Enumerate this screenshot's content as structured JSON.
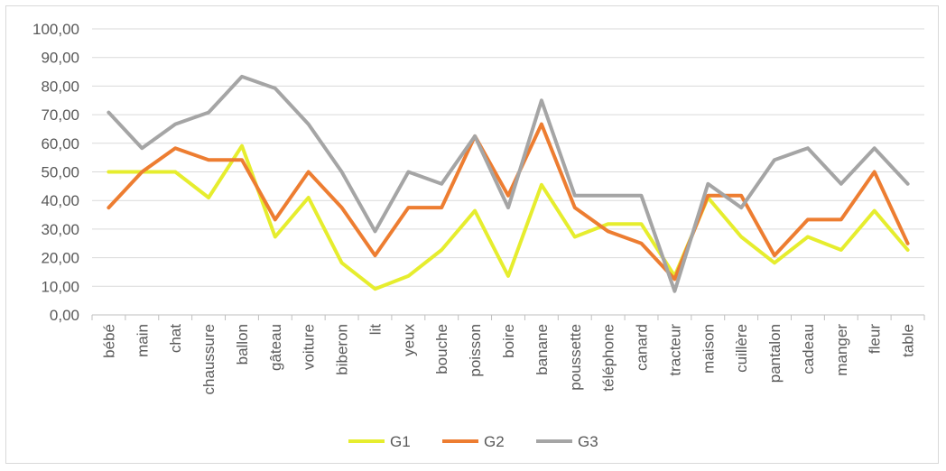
{
  "chart_data": {
    "type": "line",
    "categories": [
      "bébé",
      "main",
      "chat",
      "chaussure",
      "ballon",
      "gâteau",
      "voiture",
      "biberon",
      "lit",
      "yeux",
      "bouche",
      "poisson",
      "boire",
      "banane",
      "poussette",
      "téléphone",
      "canard",
      "tracteur",
      "maison",
      "cuillère",
      "pantalon",
      "cadeau",
      "manger",
      "fleur",
      "table"
    ],
    "series": [
      {
        "name": "G1",
        "color": "#e6ed2e",
        "values": [
          50,
          50,
          50,
          41,
          59.1,
          27.3,
          41,
          18.2,
          9.1,
          13.6,
          22.7,
          36.4,
          13.6,
          45.5,
          27.3,
          31.8,
          31.8,
          13.6,
          41,
          27.3,
          18.2,
          27.3,
          22.7,
          36.4,
          22.7
        ]
      },
      {
        "name": "G2",
        "color": "#ed7d31",
        "values": [
          37.5,
          50,
          58.3,
          54.2,
          54.2,
          33.3,
          50,
          37.5,
          20.8,
          37.5,
          37.5,
          62.5,
          41.7,
          66.7,
          37.5,
          29.2,
          25,
          12.5,
          41.7,
          41.7,
          20.8,
          33.3,
          33.3,
          50,
          25
        ]
      },
      {
        "name": "G3",
        "color": "#a5a5a5",
        "values": [
          70.8,
          58.3,
          66.7,
          70.8,
          83.3,
          79.2,
          66.7,
          50,
          29.2,
          50,
          45.8,
          62.5,
          37.5,
          75,
          41.7,
          41.7,
          41.7,
          8.3,
          45.8,
          37.5,
          54.2,
          58.3,
          45.8,
          58.3,
          45.8
        ]
      }
    ],
    "yticks": [
      "0,00",
      "10,00",
      "20,00",
      "30,00",
      "40,00",
      "50,00",
      "60,00",
      "70,00",
      "80,00",
      "90,00",
      "100,00"
    ],
    "ylim": [
      0,
      100
    ],
    "grid": true,
    "legend": "bottom"
  }
}
